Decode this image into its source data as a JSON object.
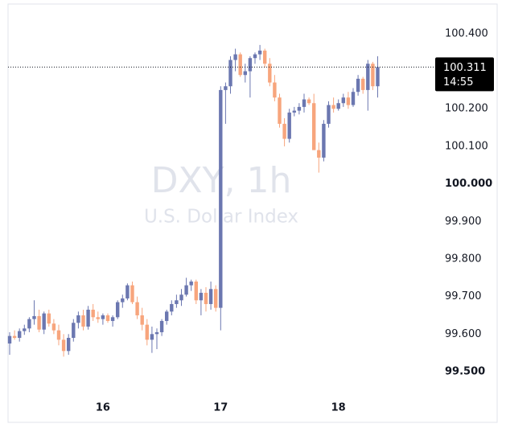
{
  "chart_data": {
    "type": "candlestick",
    "watermark_title": "DXY, 1h",
    "watermark_subtitle": "U.S. Dollar Index",
    "up_color": "#6b77b0",
    "down_color": "#f7a57d",
    "categories": [
      null,
      null,
      null,
      null,
      null,
      null,
      null,
      null,
      null,
      null,
      null,
      null,
      null,
      null,
      null,
      null,
      null,
      null,
      null,
      "16",
      null,
      null,
      null,
      null,
      null,
      null,
      null,
      null,
      null,
      null,
      null,
      null,
      null,
      null,
      null,
      null,
      null,
      null,
      null,
      null,
      null,
      null,
      null,
      "17",
      null,
      null,
      null,
      null,
      null,
      null,
      null,
      null,
      null,
      null,
      null,
      null,
      null,
      null,
      null,
      null,
      null,
      null,
      null,
      null,
      null,
      null,
      null,
      "18",
      null,
      null,
      null,
      null,
      null,
      null,
      null,
      null
    ],
    "open": [
      99.575,
      99.595,
      99.59,
      99.608,
      99.615,
      99.64,
      99.648,
      99.612,
      99.655,
      99.628,
      99.61,
      99.585,
      99.555,
      99.59,
      99.63,
      99.65,
      99.62,
      99.665,
      99.645,
      99.64,
      99.65,
      99.635,
      99.645,
      99.685,
      99.695,
      99.73,
      99.685,
      99.65,
      99.625,
      99.585,
      99.6,
      99.605,
      99.635,
      99.66,
      99.68,
      99.69,
      99.705,
      99.73,
      99.74,
      99.69,
      99.71,
      99.68,
      99.72,
      99.67,
      100.25,
      100.26,
      100.33,
      100.345,
      100.29,
      100.3,
      100.335,
      100.345,
      100.355,
      100.32,
      100.27,
      100.23,
      100.16,
      100.12,
      100.19,
      100.195,
      100.205,
      100.225,
      100.215,
      100.09,
      100.07,
      100.16,
      100.21,
      100.2,
      100.215,
      100.23,
      100.21,
      100.245,
      100.28,
      100.25,
      100.32,
      100.26
    ],
    "high": [
      99.605,
      99.61,
      99.615,
      99.625,
      99.645,
      99.69,
      99.665,
      99.66,
      99.665,
      99.64,
      99.625,
      99.6,
      99.6,
      99.64,
      99.66,
      99.665,
      99.675,
      99.68,
      99.66,
      99.655,
      99.655,
      99.65,
      99.69,
      99.705,
      99.735,
      99.74,
      99.7,
      99.67,
      99.64,
      99.62,
      99.615,
      99.64,
      99.665,
      99.69,
      99.705,
      99.72,
      99.75,
      99.745,
      99.745,
      99.72,
      99.725,
      99.74,
      99.73,
      100.26,
      100.27,
      100.34,
      100.36,
      100.35,
      100.32,
      100.34,
      100.35,
      100.37,
      100.36,
      100.335,
      100.29,
      100.24,
      100.175,
      100.2,
      100.205,
      100.215,
      100.24,
      100.23,
      100.24,
      100.11,
      100.17,
      100.22,
      100.23,
      100.225,
      100.24,
      100.245,
      100.255,
      100.29,
      100.285,
      100.33,
      100.325,
      100.34
    ],
    "low": [
      99.545,
      99.585,
      99.58,
      99.598,
      99.605,
      99.625,
      99.605,
      99.6,
      99.62,
      99.6,
      99.57,
      99.54,
      99.545,
      99.58,
      99.615,
      99.61,
      99.612,
      99.635,
      99.63,
      99.625,
      99.63,
      99.62,
      99.64,
      99.67,
      99.69,
      99.68,
      99.64,
      99.61,
      99.57,
      99.55,
      99.56,
      99.595,
      99.625,
      99.65,
      99.67,
      99.675,
      99.7,
      99.715,
      99.68,
      99.65,
      99.66,
      99.665,
      99.66,
      99.61,
      100.16,
      100.24,
      100.3,
      100.285,
      100.27,
      100.23,
      100.32,
      100.33,
      100.31,
      100.26,
      100.22,
      100.15,
      100.1,
      100.11,
      100.18,
      100.185,
      100.19,
      100.21,
      100.09,
      100.03,
      100.06,
      100.15,
      100.19,
      100.195,
      100.205,
      100.2,
      100.205,
      100.235,
      100.24,
      100.195,
      100.25,
      100.23
    ],
    "close": [
      99.595,
      99.59,
      99.608,
      99.615,
      99.64,
      99.648,
      99.612,
      99.655,
      99.628,
      99.61,
      99.585,
      99.555,
      99.59,
      99.63,
      99.65,
      99.62,
      99.665,
      99.645,
      99.64,
      99.65,
      99.635,
      99.645,
      99.685,
      99.695,
      99.73,
      99.685,
      99.65,
      99.625,
      99.585,
      99.6,
      99.605,
      99.635,
      99.66,
      99.68,
      99.69,
      99.705,
      99.73,
      99.74,
      99.69,
      99.71,
      99.68,
      99.72,
      99.67,
      100.25,
      100.26,
      100.33,
      100.345,
      100.29,
      100.3,
      100.335,
      100.345,
      100.355,
      100.32,
      100.27,
      100.23,
      100.16,
      100.12,
      100.19,
      100.195,
      100.205,
      100.225,
      100.215,
      100.09,
      100.07,
      100.16,
      100.21,
      100.2,
      100.215,
      100.23,
      100.21,
      100.245,
      100.28,
      100.25,
      100.32,
      100.26,
      100.311
    ],
    "ylim": [
      99.365,
      100.479
    ],
    "yticks": [
      {
        "value": 100.4,
        "label": "100.400"
      },
      {
        "value": 100.2,
        "label": "100.200"
      },
      {
        "value": 100.1,
        "label": "100.100"
      },
      {
        "value": 100.0,
        "label": "100.000"
      },
      {
        "value": 99.9,
        "label": "99.900"
      },
      {
        "value": 99.8,
        "label": "99.800"
      },
      {
        "value": 99.7,
        "label": "99.700"
      },
      {
        "value": 99.6,
        "label": "99.600"
      },
      {
        "value": 99.5,
        "label": "99.500"
      }
    ],
    "price_line": {
      "value": 100.311,
      "label": "100.311",
      "countdown": "14:55"
    }
  }
}
